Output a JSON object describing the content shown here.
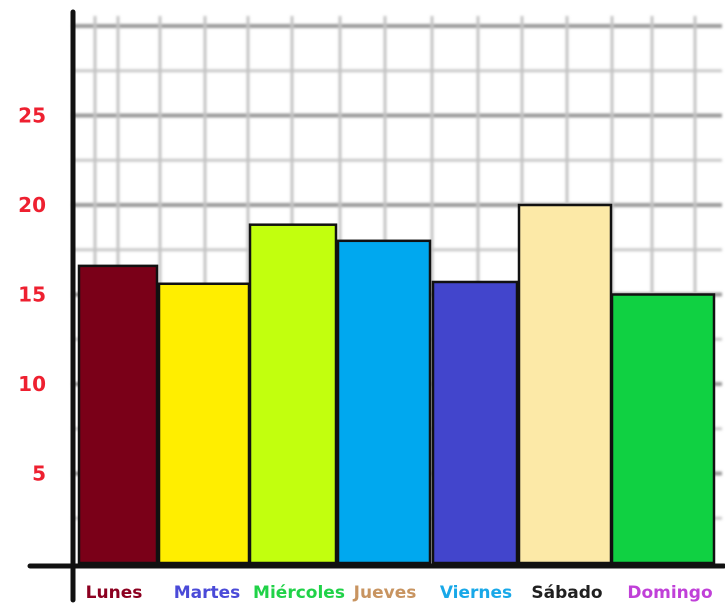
{
  "chart_data": {
    "type": "bar",
    "categories": [
      "Lunes",
      "Martes",
      "Miércoles",
      "Jueves",
      "Viernes",
      "Sábado",
      "Domingo"
    ],
    "values": [
      16.6,
      15.6,
      18.9,
      18.0,
      15.7,
      20.0,
      15.0
    ],
    "bar_colors": [
      "#7a0018",
      "#ffee00",
      "#c2ff0e",
      "#00a8ef",
      "#4245cc",
      "#fce9a7",
      "#10d142"
    ],
    "label_colors": [
      "#8c0020",
      "#4a4ad8",
      "#20d248",
      "#c89460",
      "#18a8e8",
      "#202020",
      "#c040d8"
    ],
    "yticks": [
      5,
      10,
      15,
      20,
      25
    ],
    "ytick_labels": [
      "5",
      "10",
      "15",
      "20",
      "25"
    ],
    "ytick_color": "#ee2030",
    "ylim": [
      0,
      30
    ],
    "grid": true,
    "title": "",
    "xlabel": "",
    "ylabel": ""
  }
}
